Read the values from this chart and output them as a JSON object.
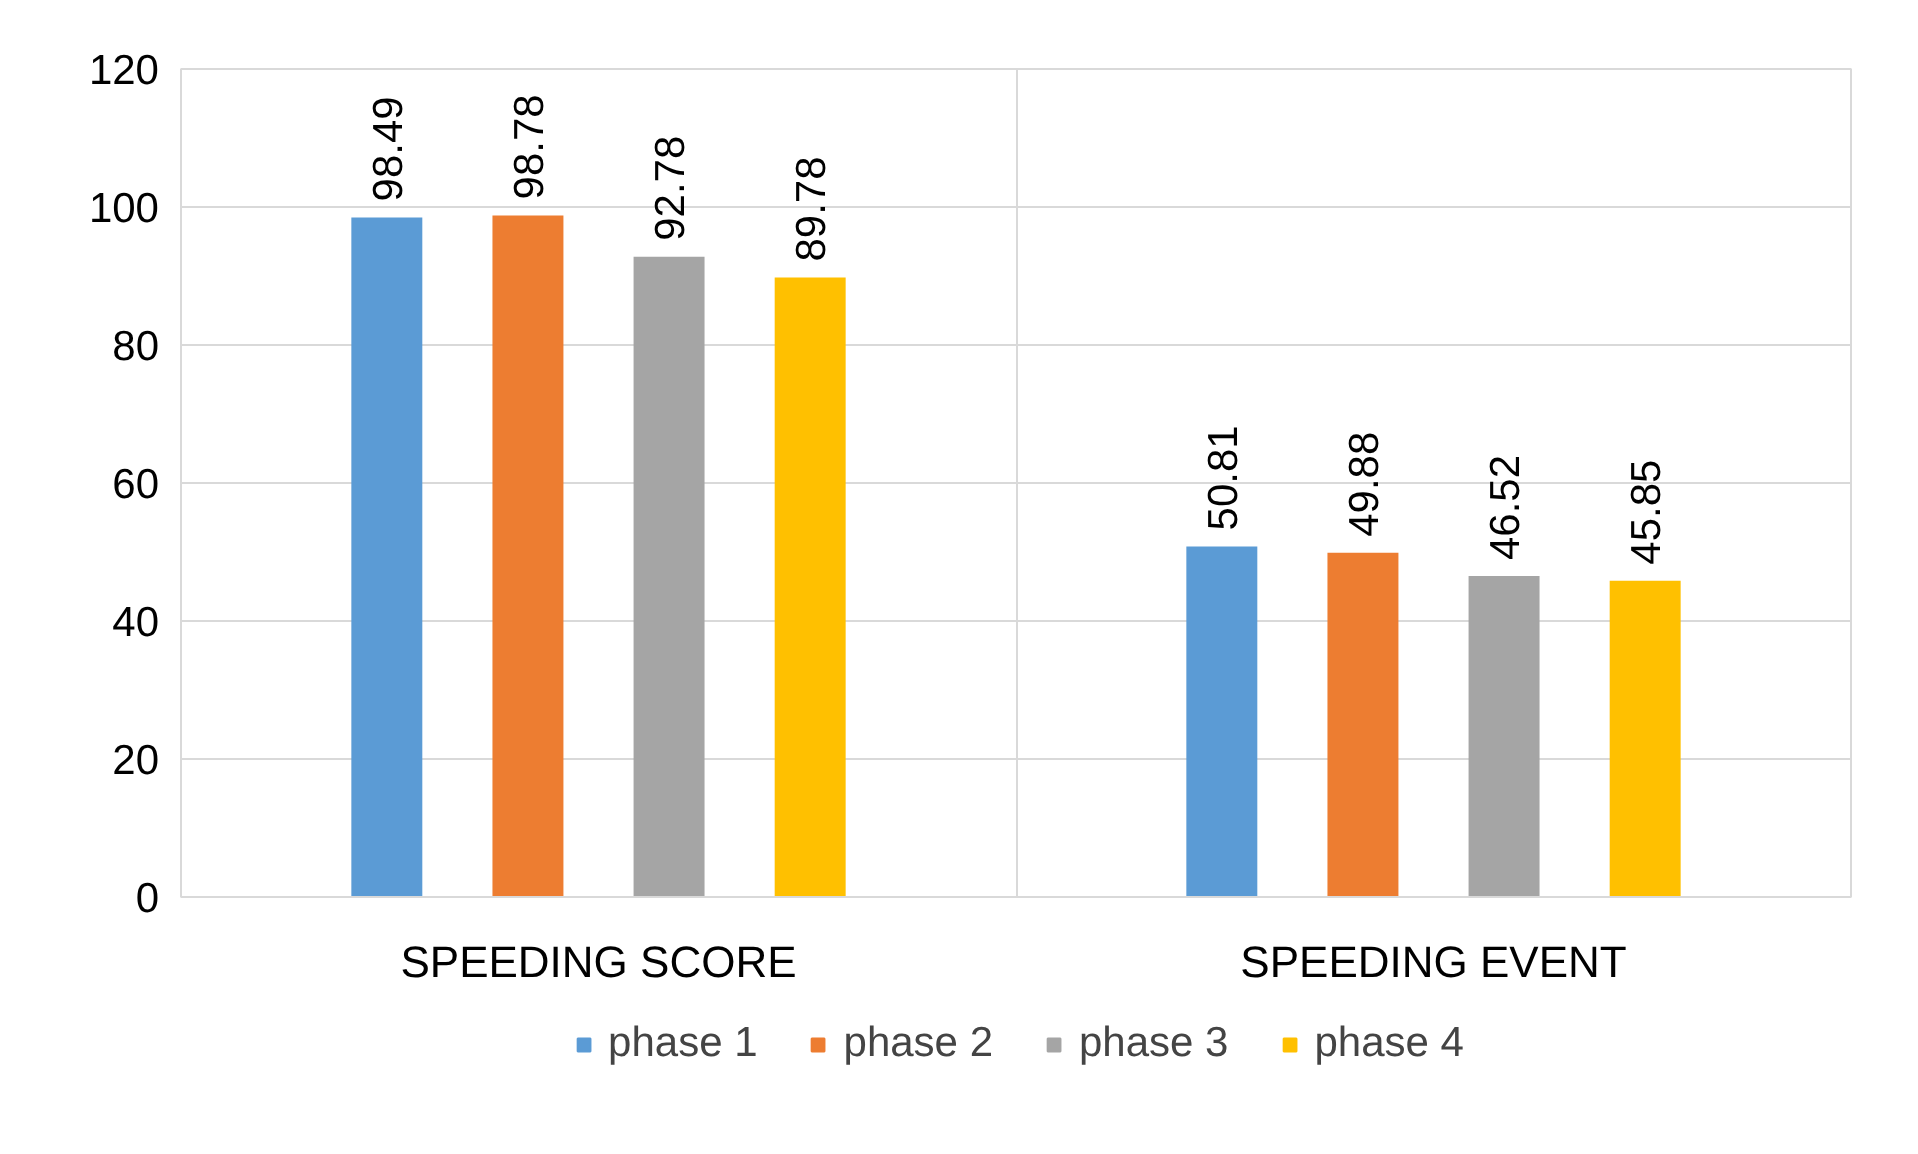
{
  "chart_data": {
    "type": "bar",
    "categories": [
      "SPEEDING SCORE",
      "SPEEDING EVENT"
    ],
    "series": [
      {
        "name": "phase 1",
        "color": "#5b9bd5",
        "values": [
          98.49,
          50.81
        ]
      },
      {
        "name": "phase 2",
        "color": "#ed7d31",
        "values": [
          98.78,
          49.88
        ]
      },
      {
        "name": "phase 3",
        "color": "#a5a5a5",
        "values": [
          92.78,
          46.52
        ]
      },
      {
        "name": "phase 4",
        "color": "#ffc000",
        "values": [
          89.78,
          45.85
        ]
      }
    ],
    "ylim": [
      0,
      120
    ],
    "yticks": [
      0,
      20,
      40,
      60,
      80,
      100,
      120
    ],
    "grid": true,
    "legend": "bottom",
    "data_labels": true
  }
}
